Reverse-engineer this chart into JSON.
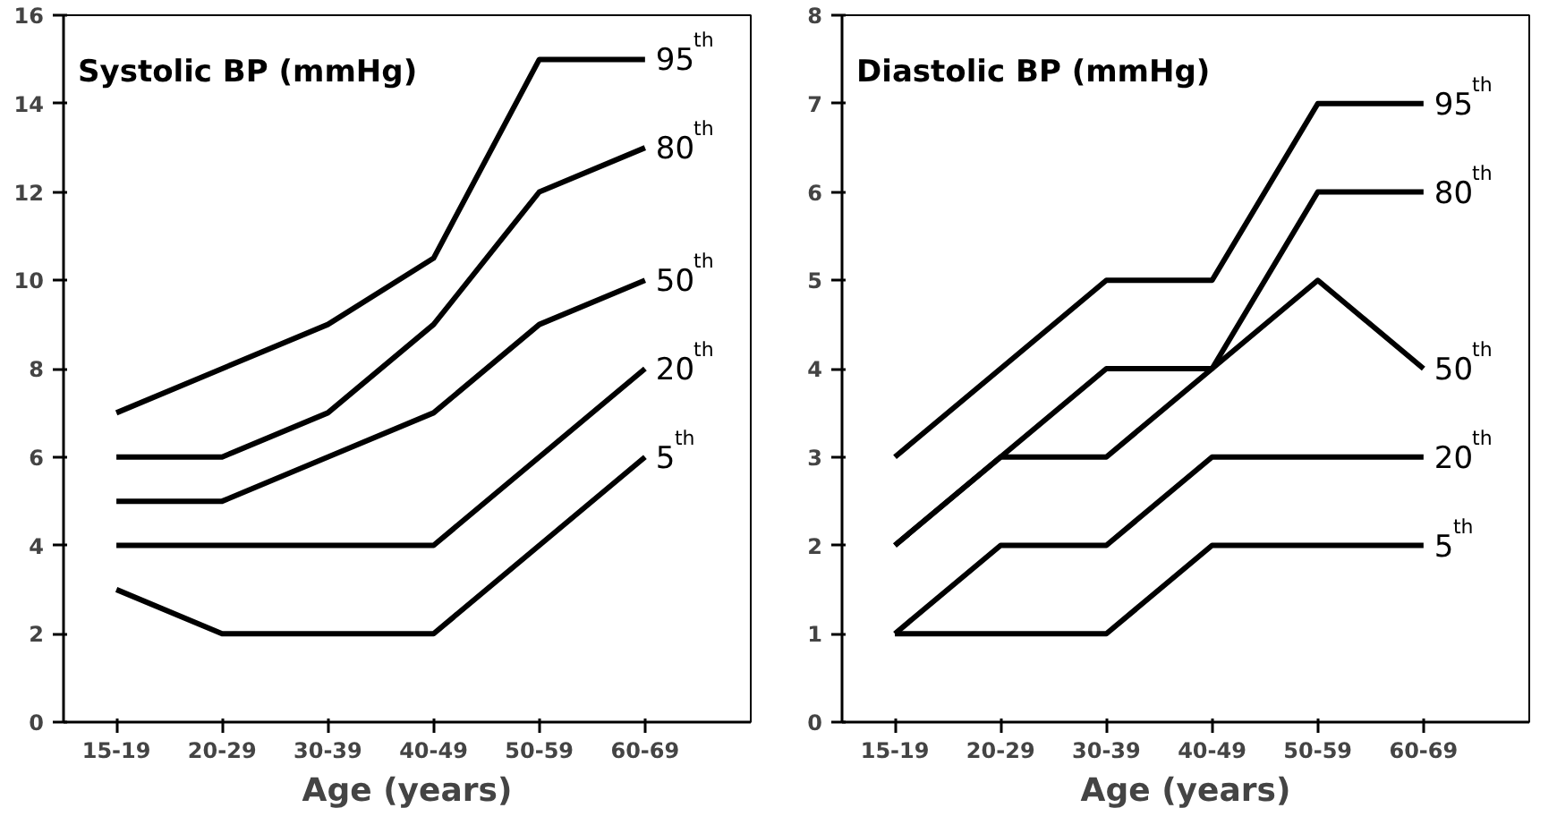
{
  "chart_data": [
    {
      "type": "line",
      "title": "Systolic BP (mmHg)",
      "xlabel": "Age (years)",
      "categories": [
        "15-19",
        "20-29",
        "30-39",
        "40-49",
        "50-59",
        "60-69"
      ],
      "ylim": [
        0,
        16
      ],
      "yticks": [
        0,
        2,
        4,
        6,
        8,
        10,
        12,
        14,
        16
      ],
      "grid": false,
      "legend": false,
      "series": [
        {
          "name": "95$^{th}$",
          "color": "#000000",
          "values": [
            7,
            8,
            9,
            10.5,
            15,
            15
          ]
        },
        {
          "name": "80$^{th}$",
          "color": "#000000",
          "values": [
            6,
            6,
            7,
            9,
            12,
            13
          ]
        },
        {
          "name": "50$^{th}$",
          "color": "#000000",
          "values": [
            5,
            5,
            6,
            7,
            9,
            10
          ]
        },
        {
          "name": "20$^{th}$",
          "color": "#000000",
          "values": [
            4,
            4,
            4,
            4,
            6,
            8
          ]
        },
        {
          "name": "5$^{th}$",
          "color": "#000000",
          "values": [
            3,
            2,
            2,
            2,
            4,
            6
          ]
        }
      ]
    },
    {
      "type": "line",
      "title": "Diastolic BP (mmHg)",
      "xlabel": "Age (years)",
      "categories": [
        "15-19",
        "20-29",
        "30-39",
        "40-49",
        "50-59",
        "60-69"
      ],
      "ylim": [
        0,
        8
      ],
      "yticks": [
        0,
        1,
        2,
        3,
        4,
        5,
        6,
        7,
        8
      ],
      "grid": false,
      "legend": false,
      "series": [
        {
          "name": "95$^{th}$",
          "color": "#000000",
          "values": [
            3,
            4,
            5,
            5,
            7,
            7
          ]
        },
        {
          "name": "80$^{th}$",
          "color": "#000000",
          "values": [
            2,
            3,
            4,
            4,
            6,
            6
          ]
        },
        {
          "name": "50$^{th}$",
          "color": "#000000",
          "values": [
            2,
            3,
            3,
            4,
            5,
            4
          ]
        },
        {
          "name": "20$^{th}$",
          "color": "#000000",
          "values": [
            1,
            2,
            2,
            3,
            3,
            3
          ]
        },
        {
          "name": "5$^{th}$",
          "color": "#000000",
          "values": [
            1,
            1,
            1,
            2,
            2,
            2
          ]
        }
      ]
    }
  ]
}
